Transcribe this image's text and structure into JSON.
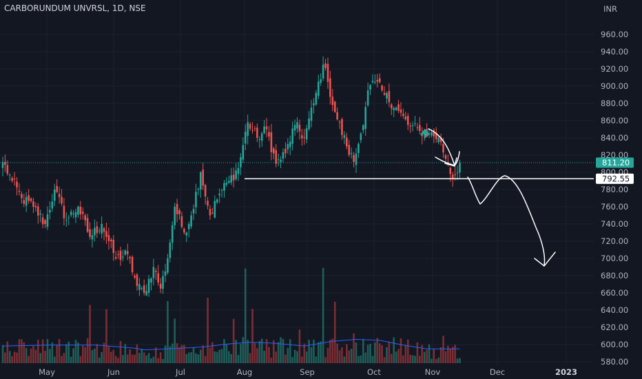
{
  "header": {
    "title": "CARBORUNDUM UNVRSL, 1D, NSE"
  },
  "currency": "INR",
  "colors": {
    "background": "#131722",
    "up": "#26a69a",
    "down": "#ef5350",
    "volume_ma": "#2962ff",
    "drawing": "#ffffff"
  },
  "chart_data": {
    "type": "candlestick",
    "y_axis": {
      "ticks": [
        "960.00",
        "940.00",
        "920.00",
        "900.00",
        "880.00",
        "860.00",
        "840.00",
        "820.00",
        "800.00",
        "780.00",
        "760.00",
        "740.00",
        "720.00",
        "700.00",
        "680.00",
        "660.00",
        "640.00",
        "620.00",
        "600.00",
        "580.00"
      ],
      "range": [
        577,
        967
      ]
    },
    "x_axis": {
      "ticks": [
        "May",
        "Jun",
        "Jul",
        "Aug",
        "Sep",
        "Oct",
        "Nov",
        "Dec",
        "2023"
      ]
    },
    "last_price": {
      "label": "811.20",
      "value": 811.2
    },
    "support_level": {
      "label": "792.55",
      "value": 792.55
    },
    "anchors": [
      {
        "idx": 0,
        "close": 812
      },
      {
        "idx": 4,
        "close": 790
      },
      {
        "idx": 8,
        "close": 770
      },
      {
        "idx": 13,
        "close": 760
      },
      {
        "idx": 18,
        "close": 740
      },
      {
        "idx": 22,
        "close": 780
      },
      {
        "idx": 27,
        "close": 745
      },
      {
        "idx": 32,
        "close": 760
      },
      {
        "idx": 37,
        "close": 725
      },
      {
        "idx": 42,
        "close": 740
      },
      {
        "idx": 48,
        "close": 700
      },
      {
        "idx": 53,
        "close": 705
      },
      {
        "idx": 57,
        "close": 668
      },
      {
        "idx": 60,
        "close": 660
      },
      {
        "idx": 64,
        "close": 690
      },
      {
        "idx": 67,
        "close": 665
      },
      {
        "idx": 70,
        "close": 700
      },
      {
        "idx": 73,
        "close": 760
      },
      {
        "idx": 77,
        "close": 730
      },
      {
        "idx": 80,
        "close": 750
      },
      {
        "idx": 84,
        "close": 800
      },
      {
        "idx": 88,
        "close": 750
      },
      {
        "idx": 92,
        "close": 775
      },
      {
        "idx": 96,
        "close": 790
      },
      {
        "idx": 100,
        "close": 805
      },
      {
        "idx": 104,
        "close": 858
      },
      {
        "idx": 108,
        "close": 840
      },
      {
        "idx": 112,
        "close": 850
      },
      {
        "idx": 116,
        "close": 810
      },
      {
        "idx": 120,
        "close": 822
      },
      {
        "idx": 124,
        "close": 855
      },
      {
        "idx": 128,
        "close": 840
      },
      {
        "idx": 132,
        "close": 880
      },
      {
        "idx": 136,
        "close": 925
      },
      {
        "idx": 138,
        "close": 905
      },
      {
        "idx": 141,
        "close": 870
      },
      {
        "idx": 146,
        "close": 830
      },
      {
        "idx": 149,
        "close": 812
      },
      {
        "idx": 152,
        "close": 845
      },
      {
        "idx": 155,
        "close": 895
      },
      {
        "idx": 158,
        "close": 905
      },
      {
        "idx": 162,
        "close": 890
      },
      {
        "idx": 167,
        "close": 875
      },
      {
        "idx": 172,
        "close": 855
      },
      {
        "idx": 177,
        "close": 848
      },
      {
        "idx": 181,
        "close": 845
      },
      {
        "idx": 185,
        "close": 840
      },
      {
        "idx": 189,
        "close": 810
      },
      {
        "idx": 191,
        "close": 793
      },
      {
        "idx": 194,
        "close": 811
      }
    ],
    "volume_ma_anchors": [
      {
        "idx": 0,
        "v": 0.9
      },
      {
        "idx": 20,
        "v": 0.95
      },
      {
        "idx": 40,
        "v": 0.95
      },
      {
        "idx": 55,
        "v": 0.8
      },
      {
        "idx": 60,
        "v": 0.7
      },
      {
        "idx": 70,
        "v": 0.75
      },
      {
        "idx": 85,
        "v": 0.85
      },
      {
        "idx": 95,
        "v": 1.0
      },
      {
        "idx": 105,
        "v": 1.1
      },
      {
        "idx": 115,
        "v": 1.05
      },
      {
        "idx": 128,
        "v": 0.9
      },
      {
        "idx": 140,
        "v": 1.15
      },
      {
        "idx": 150,
        "v": 1.25
      },
      {
        "idx": 160,
        "v": 1.2
      },
      {
        "idx": 170,
        "v": 0.95
      },
      {
        "idx": 180,
        "v": 0.75
      },
      {
        "idx": 194,
        "v": 0.75
      }
    ],
    "annotations": [
      {
        "type": "up-arrow"
      },
      {
        "type": "curved-arrow"
      },
      {
        "type": "projection-arrow"
      }
    ]
  }
}
